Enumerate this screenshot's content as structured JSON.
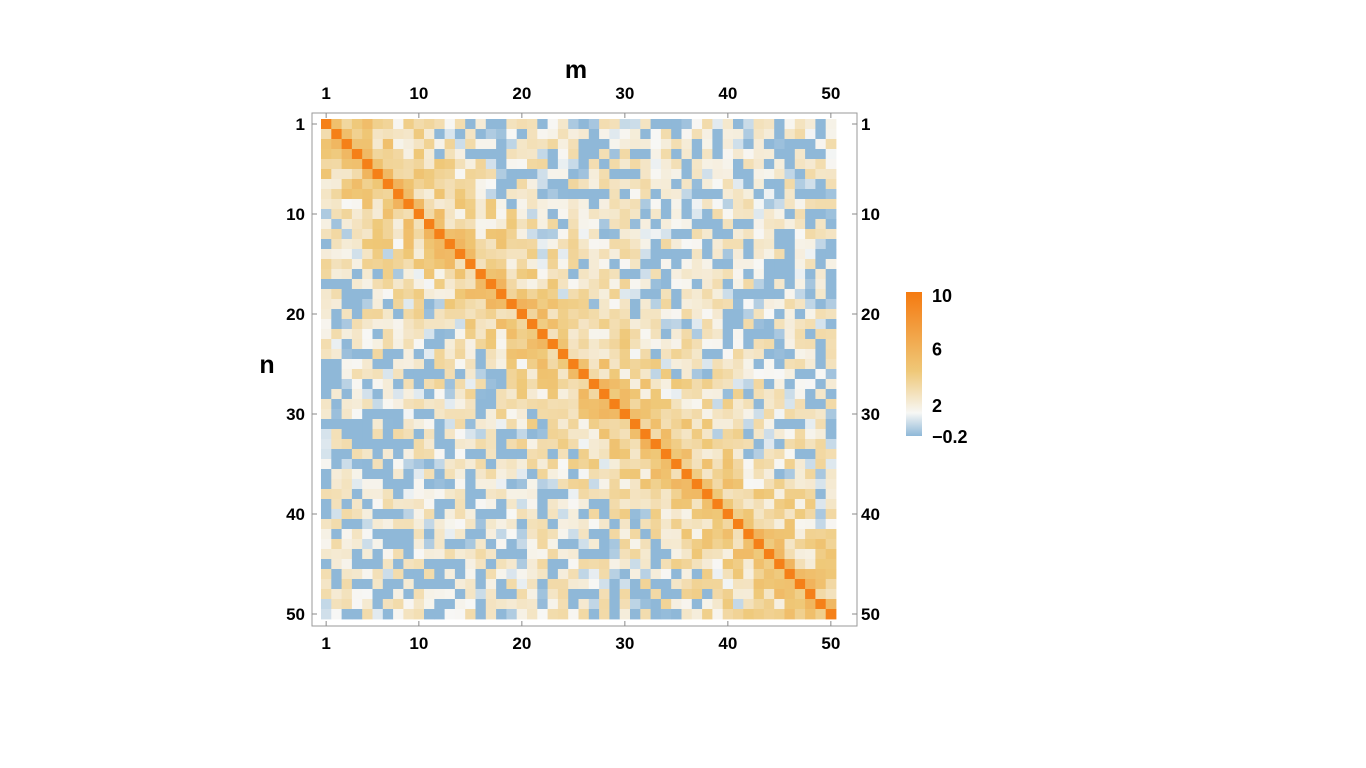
{
  "chart_data": {
    "type": "heatmap",
    "title": "",
    "xlabel": "m",
    "ylabel": "n",
    "rows": 50,
    "cols": 50,
    "x_ticks": [
      1,
      10,
      20,
      30,
      40,
      50
    ],
    "y_ticks": [
      1,
      10,
      20,
      30,
      40,
      50
    ],
    "value_range": [
      -0.2,
      10
    ],
    "diagonal_value": 9.5,
    "colorbar": {
      "ticks": [
        10,
        6,
        2,
        -0.2
      ],
      "tick_labels": [
        "10",
        "6",
        "2",
        "−0.2"
      ],
      "colors": {
        "low": "#8fb8d8",
        "zero": "#f7f7f5",
        "mid": "#efc878",
        "high": "#f57a10"
      }
    }
  }
}
